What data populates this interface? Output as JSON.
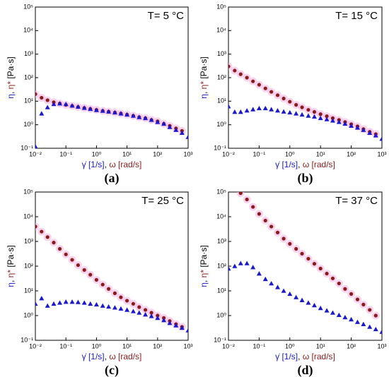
{
  "chart_data": [
    {
      "type": "scatter",
      "title": "T= 5 °C",
      "panel_label": "(a)",
      "xlabel": [
        "γ̇ [1/s]",
        ", ",
        "ω [rad/s]"
      ],
      "ylabel": [
        "η",
        ", ",
        "η*",
        " [Pa·s]"
      ],
      "log_x": true,
      "log_y": true,
      "xlim": [
        0.01,
        1000
      ],
      "ylim": [
        0.1,
        100000
      ],
      "xticks": [
        {
          "value": 0.01,
          "label": "10⁻²"
        },
        {
          "value": 0.1,
          "label": "10⁻¹"
        },
        {
          "value": 1,
          "label": "10⁰"
        },
        {
          "value": 10,
          "label": "10¹"
        },
        {
          "value": 100,
          "label": "10²"
        },
        {
          "value": 1000,
          "label": "10³"
        }
      ],
      "yticks": [
        {
          "value": 0.1,
          "label": "10⁻¹"
        },
        {
          "value": 1,
          "label": "10⁰"
        },
        {
          "value": 10,
          "label": "10¹"
        },
        {
          "value": 100,
          "label": "10²"
        },
        {
          "value": 1000,
          "label": "10³"
        },
        {
          "value": 10000,
          "label": "10⁴"
        },
        {
          "value": 100000,
          "label": "10⁵"
        }
      ],
      "x": [
        0.01,
        0.016,
        0.025,
        0.04,
        0.063,
        0.1,
        0.16,
        0.25,
        0.4,
        0.63,
        1,
        1.6,
        2.5,
        4,
        6.3,
        10,
        16,
        25,
        40,
        63,
        100,
        160,
        250,
        400,
        630,
        1000
      ],
      "series": [
        {
          "color": "#1a1acc",
          "marker": "triangle",
          "values": [
            0.12,
            3,
            5.5,
            7.5,
            8,
            7.5,
            6.5,
            5.8,
            5.2,
            4.7,
            4.2,
            3.9,
            3.6,
            3.3,
            3,
            2.7,
            2.4,
            2.1,
            1.9,
            1.6,
            1.3,
            1.1,
            0.8,
            0.6,
            0.45,
            0.3
          ]
        },
        {
          "color": "#8b1a1a",
          "marker": "circle",
          "values": [
            20,
            14,
            11,
            9,
            8,
            7,
            6.3,
            5.7,
            5.2,
            4.7,
            4.3,
            3.9,
            3.6,
            3.3,
            3,
            2.7,
            2.4,
            2.1,
            1.9,
            1.6,
            1.4,
            1.1,
            0.9,
            0.7,
            0.55,
            null
          ]
        }
      ]
    },
    {
      "type": "scatter",
      "title": "T= 15 °C",
      "panel_label": "(b)",
      "xlabel": [
        "γ̇ [1/s]",
        ", ",
        "ω [rad/s]"
      ],
      "ylabel": [
        "η",
        ", ",
        "η*",
        " [Pa·s]"
      ],
      "log_x": true,
      "log_y": true,
      "xlim": [
        0.01,
        1000
      ],
      "ylim": [
        0.1,
        100000
      ],
      "xticks": [
        {
          "value": 0.01,
          "label": "10⁻²"
        },
        {
          "value": 0.1,
          "label": "10⁻¹"
        },
        {
          "value": 1,
          "label": "10⁰"
        },
        {
          "value": 10,
          "label": "10¹"
        },
        {
          "value": 100,
          "label": "10²"
        },
        {
          "value": 1000,
          "label": "10³"
        }
      ],
      "yticks": [
        {
          "value": 0.1,
          "label": "10⁻¹"
        },
        {
          "value": 1,
          "label": "10⁰"
        },
        {
          "value": 10,
          "label": "10¹"
        },
        {
          "value": 100,
          "label": "10²"
        },
        {
          "value": 1000,
          "label": "10³"
        },
        {
          "value": 10000,
          "label": "10⁴"
        },
        {
          "value": 100000,
          "label": "10⁵"
        }
      ],
      "x": [
        0.01,
        0.016,
        0.025,
        0.04,
        0.063,
        0.1,
        0.16,
        0.25,
        0.4,
        0.63,
        1,
        1.6,
        2.5,
        4,
        6.3,
        10,
        16,
        25,
        40,
        63,
        100,
        160,
        250,
        400,
        630,
        1000
      ],
      "series": [
        {
          "color": "#1a1acc",
          "marker": "triangle",
          "values": [
            6,
            3.5,
            3.5,
            4,
            4.5,
            5,
            5,
            4.5,
            4,
            3.6,
            3.3,
            3,
            2.7,
            2.4,
            2.2,
            1.9,
            1.7,
            1.5,
            1.3,
            1.1,
            0.9,
            0.75,
            0.6,
            0.45,
            0.35,
            0.25
          ]
        },
        {
          "color": "#8b1a1a",
          "marker": "circle",
          "values": [
            300,
            200,
            140,
            100,
            70,
            50,
            35,
            25,
            18,
            13,
            9.5,
            7,
            5.5,
            4.3,
            3.5,
            2.8,
            2.3,
            1.9,
            1.6,
            1.3,
            1.05,
            0.85,
            0.65,
            0.5,
            0.4,
            null
          ]
        }
      ]
    },
    {
      "type": "scatter",
      "title": "T= 25 °C",
      "panel_label": "(c)",
      "xlabel": [
        "γ̇ [1/s]",
        ", ",
        "ω [rad/s]"
      ],
      "ylabel": [
        "η",
        ", ",
        "η*",
        " [Pa·s]"
      ],
      "log_x": true,
      "log_y": true,
      "xlim": [
        0.01,
        1000
      ],
      "ylim": [
        0.1,
        100000
      ],
      "xticks": [
        {
          "value": 0.01,
          "label": "10⁻²"
        },
        {
          "value": 0.1,
          "label": "10⁻¹"
        },
        {
          "value": 1,
          "label": "10⁰"
        },
        {
          "value": 10,
          "label": "10¹"
        },
        {
          "value": 100,
          "label": "10²"
        },
        {
          "value": 1000,
          "label": "10³"
        }
      ],
      "yticks": [
        {
          "value": 0.1,
          "label": "10⁻¹"
        },
        {
          "value": 1,
          "label": "10⁰"
        },
        {
          "value": 10,
          "label": "10¹"
        },
        {
          "value": 100,
          "label": "10²"
        },
        {
          "value": 1000,
          "label": "10³"
        },
        {
          "value": 10000,
          "label": "10⁴"
        },
        {
          "value": 100000,
          "label": "10⁵"
        }
      ],
      "x": [
        0.01,
        0.016,
        0.025,
        0.04,
        0.063,
        0.1,
        0.16,
        0.25,
        0.4,
        0.63,
        1,
        1.6,
        2.5,
        4,
        6.3,
        10,
        16,
        25,
        40,
        63,
        100,
        160,
        250,
        400,
        630,
        1000
      ],
      "series": [
        {
          "color": "#1a1acc",
          "marker": "triangle",
          "values": [
            3,
            5,
            2.5,
            3,
            3.3,
            3.6,
            3.6,
            3.5,
            3.3,
            3,
            2.8,
            2.5,
            2.3,
            2.1,
            1.9,
            1.7,
            1.5,
            1.3,
            1.1,
            0.95,
            0.8,
            0.65,
            0.5,
            0.4,
            0.32,
            0.25
          ]
        },
        {
          "color": "#8b1a1a",
          "marker": "circle",
          "values": [
            4000,
            2500,
            1500,
            900,
            500,
            300,
            180,
            110,
            70,
            45,
            28,
            18,
            12,
            8,
            5.5,
            4,
            3,
            2.2,
            1.7,
            1.3,
            1,
            0.8,
            0.6,
            0.45,
            0.35,
            null
          ]
        }
      ]
    },
    {
      "type": "scatter",
      "title": "T= 37 °C",
      "panel_label": "(d)",
      "xlabel": [
        "γ̇ [1/s]",
        ", ",
        "ω [rad/s]"
      ],
      "ylabel": [
        "η",
        ", ",
        "η*",
        " [Pa·s]"
      ],
      "log_x": true,
      "log_y": true,
      "xlim": [
        0.01,
        1000
      ],
      "ylim": [
        0.1,
        100000
      ],
      "xticks": [
        {
          "value": 0.01,
          "label": "10⁻²"
        },
        {
          "value": 0.1,
          "label": "10⁻¹"
        },
        {
          "value": 1,
          "label": "10⁰"
        },
        {
          "value": 10,
          "label": "10¹"
        },
        {
          "value": 100,
          "label": "10²"
        },
        {
          "value": 1000,
          "label": "10³"
        }
      ],
      "yticks": [
        {
          "value": 0.1,
          "label": "10⁻¹"
        },
        {
          "value": 1,
          "label": "10⁰"
        },
        {
          "value": 10,
          "label": "10¹"
        },
        {
          "value": 100,
          "label": "10²"
        },
        {
          "value": 1000,
          "label": "10³"
        },
        {
          "value": 10000,
          "label": "10⁴"
        },
        {
          "value": 100000,
          "label": "10⁵"
        }
      ],
      "x": [
        0.01,
        0.016,
        0.025,
        0.04,
        0.063,
        0.1,
        0.16,
        0.25,
        0.4,
        0.63,
        1,
        1.6,
        2.5,
        4,
        6.3,
        10,
        16,
        25,
        40,
        63,
        100,
        160,
        250,
        400,
        630,
        1000
      ],
      "series": [
        {
          "color": "#1a1acc",
          "marker": "triangle",
          "values": [
            80,
            100,
            130,
            130,
            90,
            50,
            30,
            20,
            14,
            10,
            7.5,
            5.5,
            4.2,
            3.3,
            2.6,
            2,
            1.6,
            1.3,
            1.05,
            0.85,
            0.7,
            0.55,
            0.45,
            0.35,
            0.28,
            0.22
          ]
        },
        {
          "color": "#8b1a1a",
          "marker": "circle",
          "values": [
            null,
            null,
            90000,
            50000,
            25000,
            13000,
            7000,
            4000,
            2300,
            1300,
            800,
            500,
            320,
            200,
            125,
            80,
            50,
            32,
            20,
            12,
            7.5,
            4.5,
            2.8,
            1.7,
            1,
            null
          ]
        }
      ]
    }
  ]
}
